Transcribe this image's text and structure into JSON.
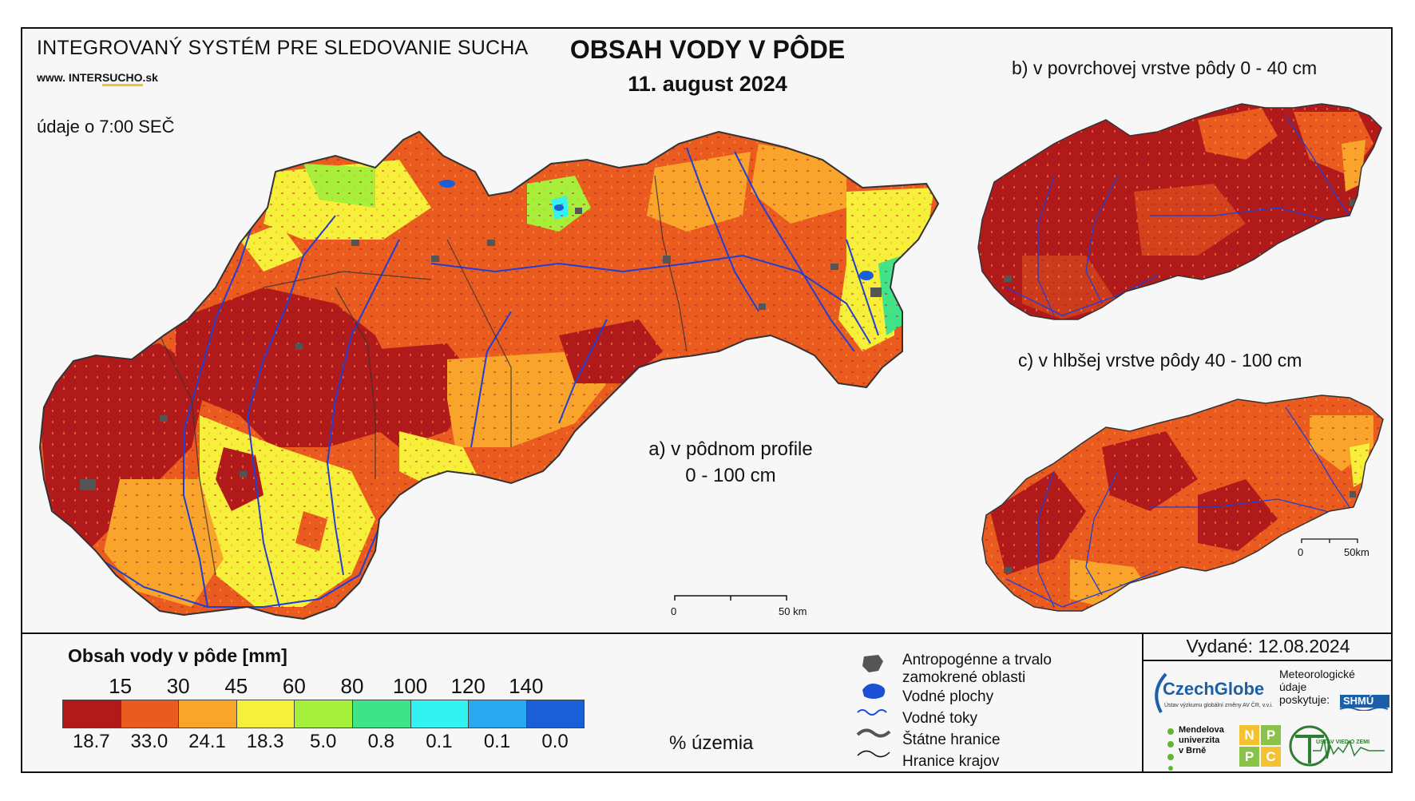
{
  "header": {
    "system_name": "INTEGROVANÝ SYSTÉM PRE SLEDOVANIE SUCHA",
    "url_prefix": "www. INTER",
    "url_accent": "SUCHO",
    "url_suffix": ".sk",
    "data_time": "údaje o 7:00 SEČ",
    "title": "OBSAH VODY V PÔDE",
    "date": "11. august 2024"
  },
  "panels": {
    "a_line1": "a) v pôdnom profile",
    "a_line2": "0 - 100 cm",
    "b": "b) v povrchovej vrstve pôdy 0 - 40 cm",
    "c": "c) v hlbšej vrstve pôdy 40 - 100 cm"
  },
  "scalebars": {
    "main": {
      "start": "0",
      "end": "50 km"
    },
    "small": {
      "start": "0",
      "end": "50km"
    }
  },
  "legend": {
    "title": "Obsah vody v pôde  [mm]",
    "thresholds": [
      "15",
      "30",
      "45",
      "60",
      "80",
      "100",
      "120",
      "140"
    ],
    "classes": [
      {
        "color": "#b11a1a",
        "percent": "18.7"
      },
      {
        "color": "#ea5b1f",
        "percent": "33.0"
      },
      {
        "color": "#f9a52b",
        "percent": "24.1"
      },
      {
        "color": "#f7f03a",
        "percent": "18.3"
      },
      {
        "color": "#a6ef3a",
        "percent": "5.0"
      },
      {
        "color": "#3fe38a",
        "percent": "0.8"
      },
      {
        "color": "#33f2f2",
        "percent": "0.1"
      },
      {
        "color": "#2aa8f0",
        "percent": "0.1"
      },
      {
        "color": "#1a5fd6",
        "percent": "0.0"
      }
    ],
    "percent_unit": "% územia"
  },
  "symbols": {
    "anthropogenic_line1": "Antropogénne a trvalo",
    "anthropogenic_line2": "zamokrené oblasti",
    "water_bodies": "Vodné plochy",
    "water_flows": "Vodné toky",
    "state_borders": "Štátne hranice",
    "region_borders": "Hranice krajov"
  },
  "issued": "Vydané: 12.08.2024",
  "logos": {
    "czechglobe": "CzechGlobe",
    "czechglobe_sub": "Ústav výzkumu globální změny AV ČR, v.v.i.",
    "meteo_line1": "Meteorologické",
    "meteo_line2": "údaje",
    "meteo_line3": "poskytuje:",
    "shmu": "SHMÚ",
    "mendel_line1": "Mendelova",
    "mendel_line2": "univerzita",
    "mendel_line3": "v Brně",
    "npp_letters": [
      "N",
      "P",
      "P",
      "C"
    ],
    "uvz": "ÚSTAV VIED O ZEMI"
  },
  "colors": {
    "river": "#1f3fd6",
    "urban": "#555555"
  }
}
